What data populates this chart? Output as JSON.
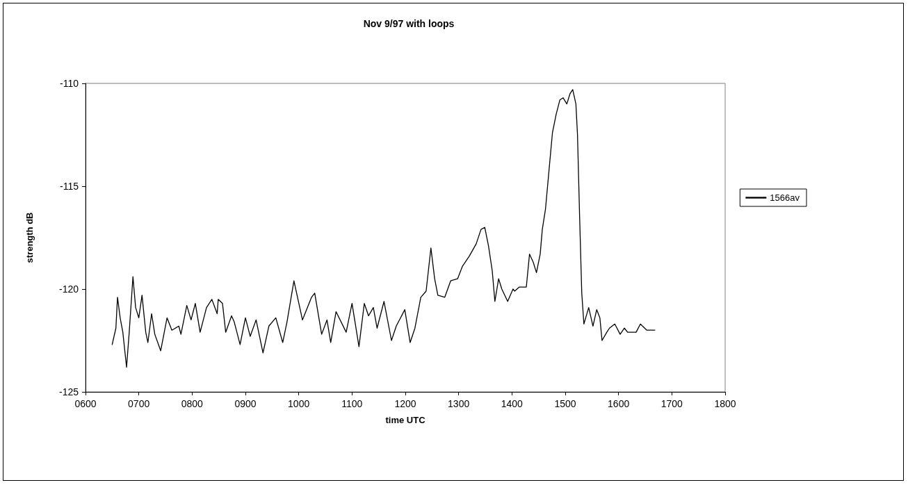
{
  "chart_data": {
    "type": "line",
    "title": "Nov 9/97 with loops",
    "xlabel": "time UTC",
    "ylabel": "strength dB",
    "xlim": [
      600,
      1800
    ],
    "xticks": [
      {
        "value": 600,
        "label": "0600"
      },
      {
        "value": 700,
        "label": "0700"
      },
      {
        "value": 800,
        "label": "0800"
      },
      {
        "value": 900,
        "label": "0900"
      },
      1000,
      1100,
      1200,
      1300,
      1400,
      1500,
      1600,
      1700,
      1800
    ],
    "ylim": [
      -125,
      -110
    ],
    "yticks": [
      -125,
      -120,
      -115,
      -110
    ],
    "grid": false,
    "legend": "right",
    "marker": "none",
    "line_style": "solid",
    "series": [
      {
        "name": "1566av",
        "color": "#000000",
        "x": [
          650,
          657,
          660,
          665,
          670,
          677,
          682,
          689,
          694,
          700,
          706,
          713,
          717,
          724,
          730,
          741,
          753,
          762,
          775,
          779,
          790,
          798,
          806,
          815,
          827,
          837,
          847,
          849,
          857,
          863,
          874,
          879,
          890,
          900,
          909,
          920,
          933,
          944,
          957,
          970,
          978,
          991,
          1007,
          1024,
          1030,
          1043,
          1053,
          1060,
          1070,
          1089,
          1100,
          1113,
          1123,
          1131,
          1140,
          1147,
          1160,
          1174,
          1183,
          1199,
          1209,
          1218,
          1229,
          1239,
          1248,
          1255,
          1261,
          1274,
          1285,
          1298,
          1307,
          1320,
          1333,
          1342,
          1349,
          1356,
          1363,
          1368,
          1375,
          1381,
          1392,
          1402,
          1405,
          1414,
          1427,
          1433,
          1440,
          1446,
          1453,
          1457,
          1463,
          1470,
          1476,
          1483,
          1490,
          1496,
          1503,
          1509,
          1514,
          1520,
          1523,
          1527,
          1531,
          1535,
          1544,
          1552,
          1559,
          1565,
          1569,
          1578,
          1583,
          1593,
          1603,
          1611,
          1617,
          1633,
          1641,
          1653,
          1668
        ],
        "values": [
          -122.7,
          -121.9,
          -120.4,
          -121.4,
          -122.1,
          -123.8,
          -122.1,
          -119.4,
          -120.9,
          -121.4,
          -120.3,
          -122.1,
          -122.6,
          -121.2,
          -122.2,
          -123.0,
          -121.4,
          -122.0,
          -121.8,
          -122.2,
          -120.8,
          -121.5,
          -120.7,
          -122.1,
          -120.9,
          -120.5,
          -121.2,
          -120.5,
          -120.7,
          -122.1,
          -121.3,
          -121.6,
          -122.7,
          -121.4,
          -122.3,
          -121.5,
          -123.1,
          -121.8,
          -121.4,
          -122.6,
          -121.6,
          -119.6,
          -121.5,
          -120.4,
          -120.2,
          -122.2,
          -121.5,
          -122.6,
          -121.1,
          -122.1,
          -120.7,
          -122.8,
          -120.7,
          -121.3,
          -120.9,
          -121.9,
          -120.6,
          -122.5,
          -121.8,
          -121.0,
          -122.6,
          -121.9,
          -120.4,
          -120.1,
          -118.0,
          -119.5,
          -120.3,
          -120.4,
          -119.6,
          -119.5,
          -118.9,
          -118.4,
          -117.8,
          -117.1,
          -117.0,
          -117.9,
          -119.1,
          -120.6,
          -119.5,
          -120.0,
          -120.6,
          -120.0,
          -120.1,
          -119.9,
          -119.9,
          -118.3,
          -118.7,
          -119.2,
          -118.3,
          -117.1,
          -116.1,
          -114.1,
          -112.4,
          -111.5,
          -110.8,
          -110.7,
          -111.0,
          -110.5,
          -110.3,
          -111.0,
          -112.5,
          -116.5,
          -120.2,
          -121.7,
          -120.9,
          -121.8,
          -121.0,
          -121.4,
          -122.5,
          -122.1,
          -121.9,
          -121.7,
          -122.2,
          -121.9,
          -122.1,
          -122.1,
          -121.7,
          -122.0,
          -122.0
        ]
      }
    ]
  }
}
